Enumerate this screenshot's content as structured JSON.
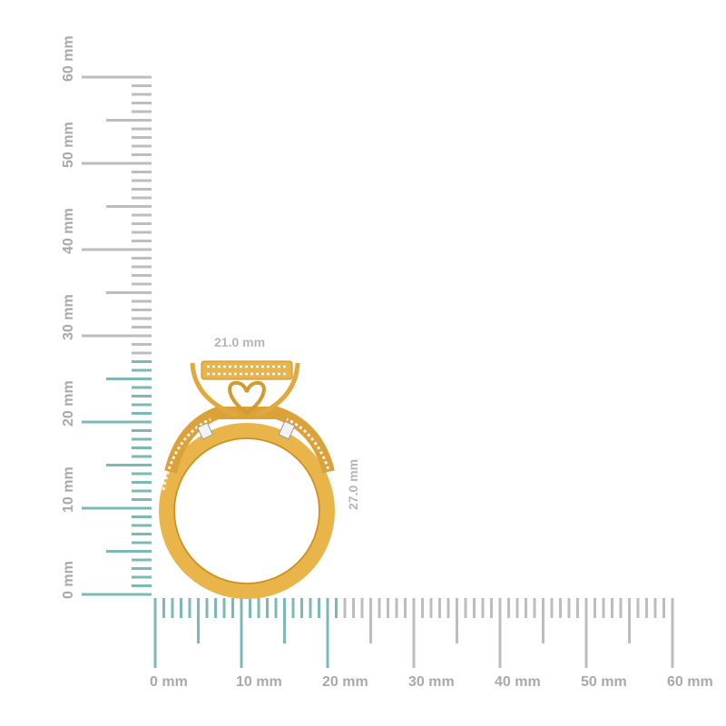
{
  "rulers": {
    "unit_label": "mm",
    "horizontal": {
      "labels": [
        "0 mm",
        "10 mm",
        "20 mm",
        "30 mm",
        "40 mm",
        "50 mm",
        "60 mm"
      ],
      "max_mm": 60,
      "highlight_mm": 21
    },
    "vertical": {
      "labels": [
        "0 mm",
        "10 mm",
        "20 mm",
        "30 mm",
        "40 mm",
        "50 mm",
        "60 mm"
      ],
      "max_mm": 60,
      "highlight_mm": 27
    }
  },
  "dimensions": {
    "width": "21.0 mm",
    "height": "27.0 mm"
  },
  "colors": {
    "highlight": "#7cb8b6",
    "tick": "#bdbdbd",
    "label": "#a9a9a9",
    "gold": "#e9b449",
    "gold_dark": "#c98e22"
  },
  "product": {
    "icon": "ring-image"
  }
}
